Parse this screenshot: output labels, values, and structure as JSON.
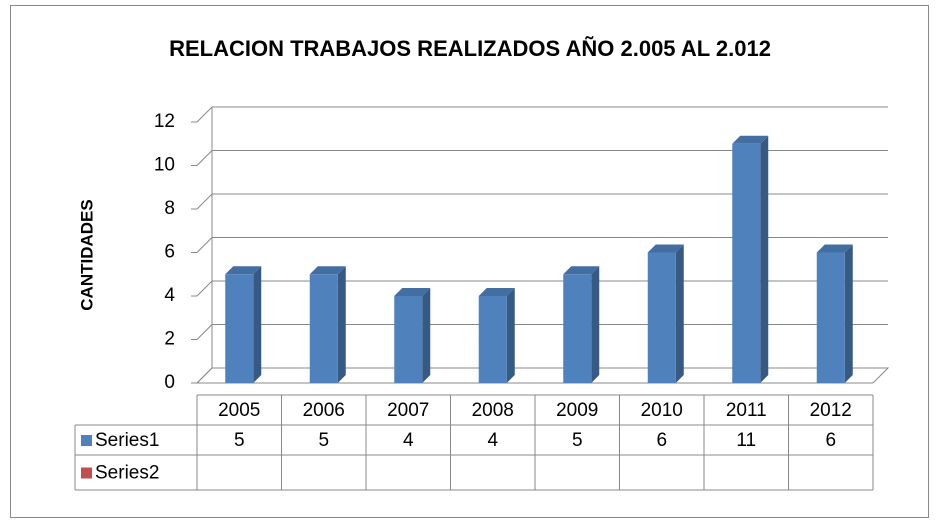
{
  "chart_data": {
    "type": "bar3d",
    "title": "RELACION TRABAJOS REALIZADOS AÑO 2.005 AL 2.012",
    "y_label": "CANTIDADES",
    "categories": [
      "2005",
      "2006",
      "2007",
      "2008",
      "2009",
      "2010",
      "2011",
      "2012"
    ],
    "series": [
      {
        "name": "Series1",
        "color": "#4f81bd",
        "values": [
          5,
          5,
          4,
          4,
          5,
          6,
          11,
          6
        ]
      },
      {
        "name": "Series2",
        "color": "#c0504d",
        "values": [
          null,
          null,
          null,
          null,
          null,
          null,
          null,
          null
        ]
      }
    ],
    "ylim": [
      0,
      12
    ],
    "yticks": [
      0,
      2,
      4,
      6,
      8,
      10,
      12
    ],
    "grid": true,
    "data_table": true
  }
}
